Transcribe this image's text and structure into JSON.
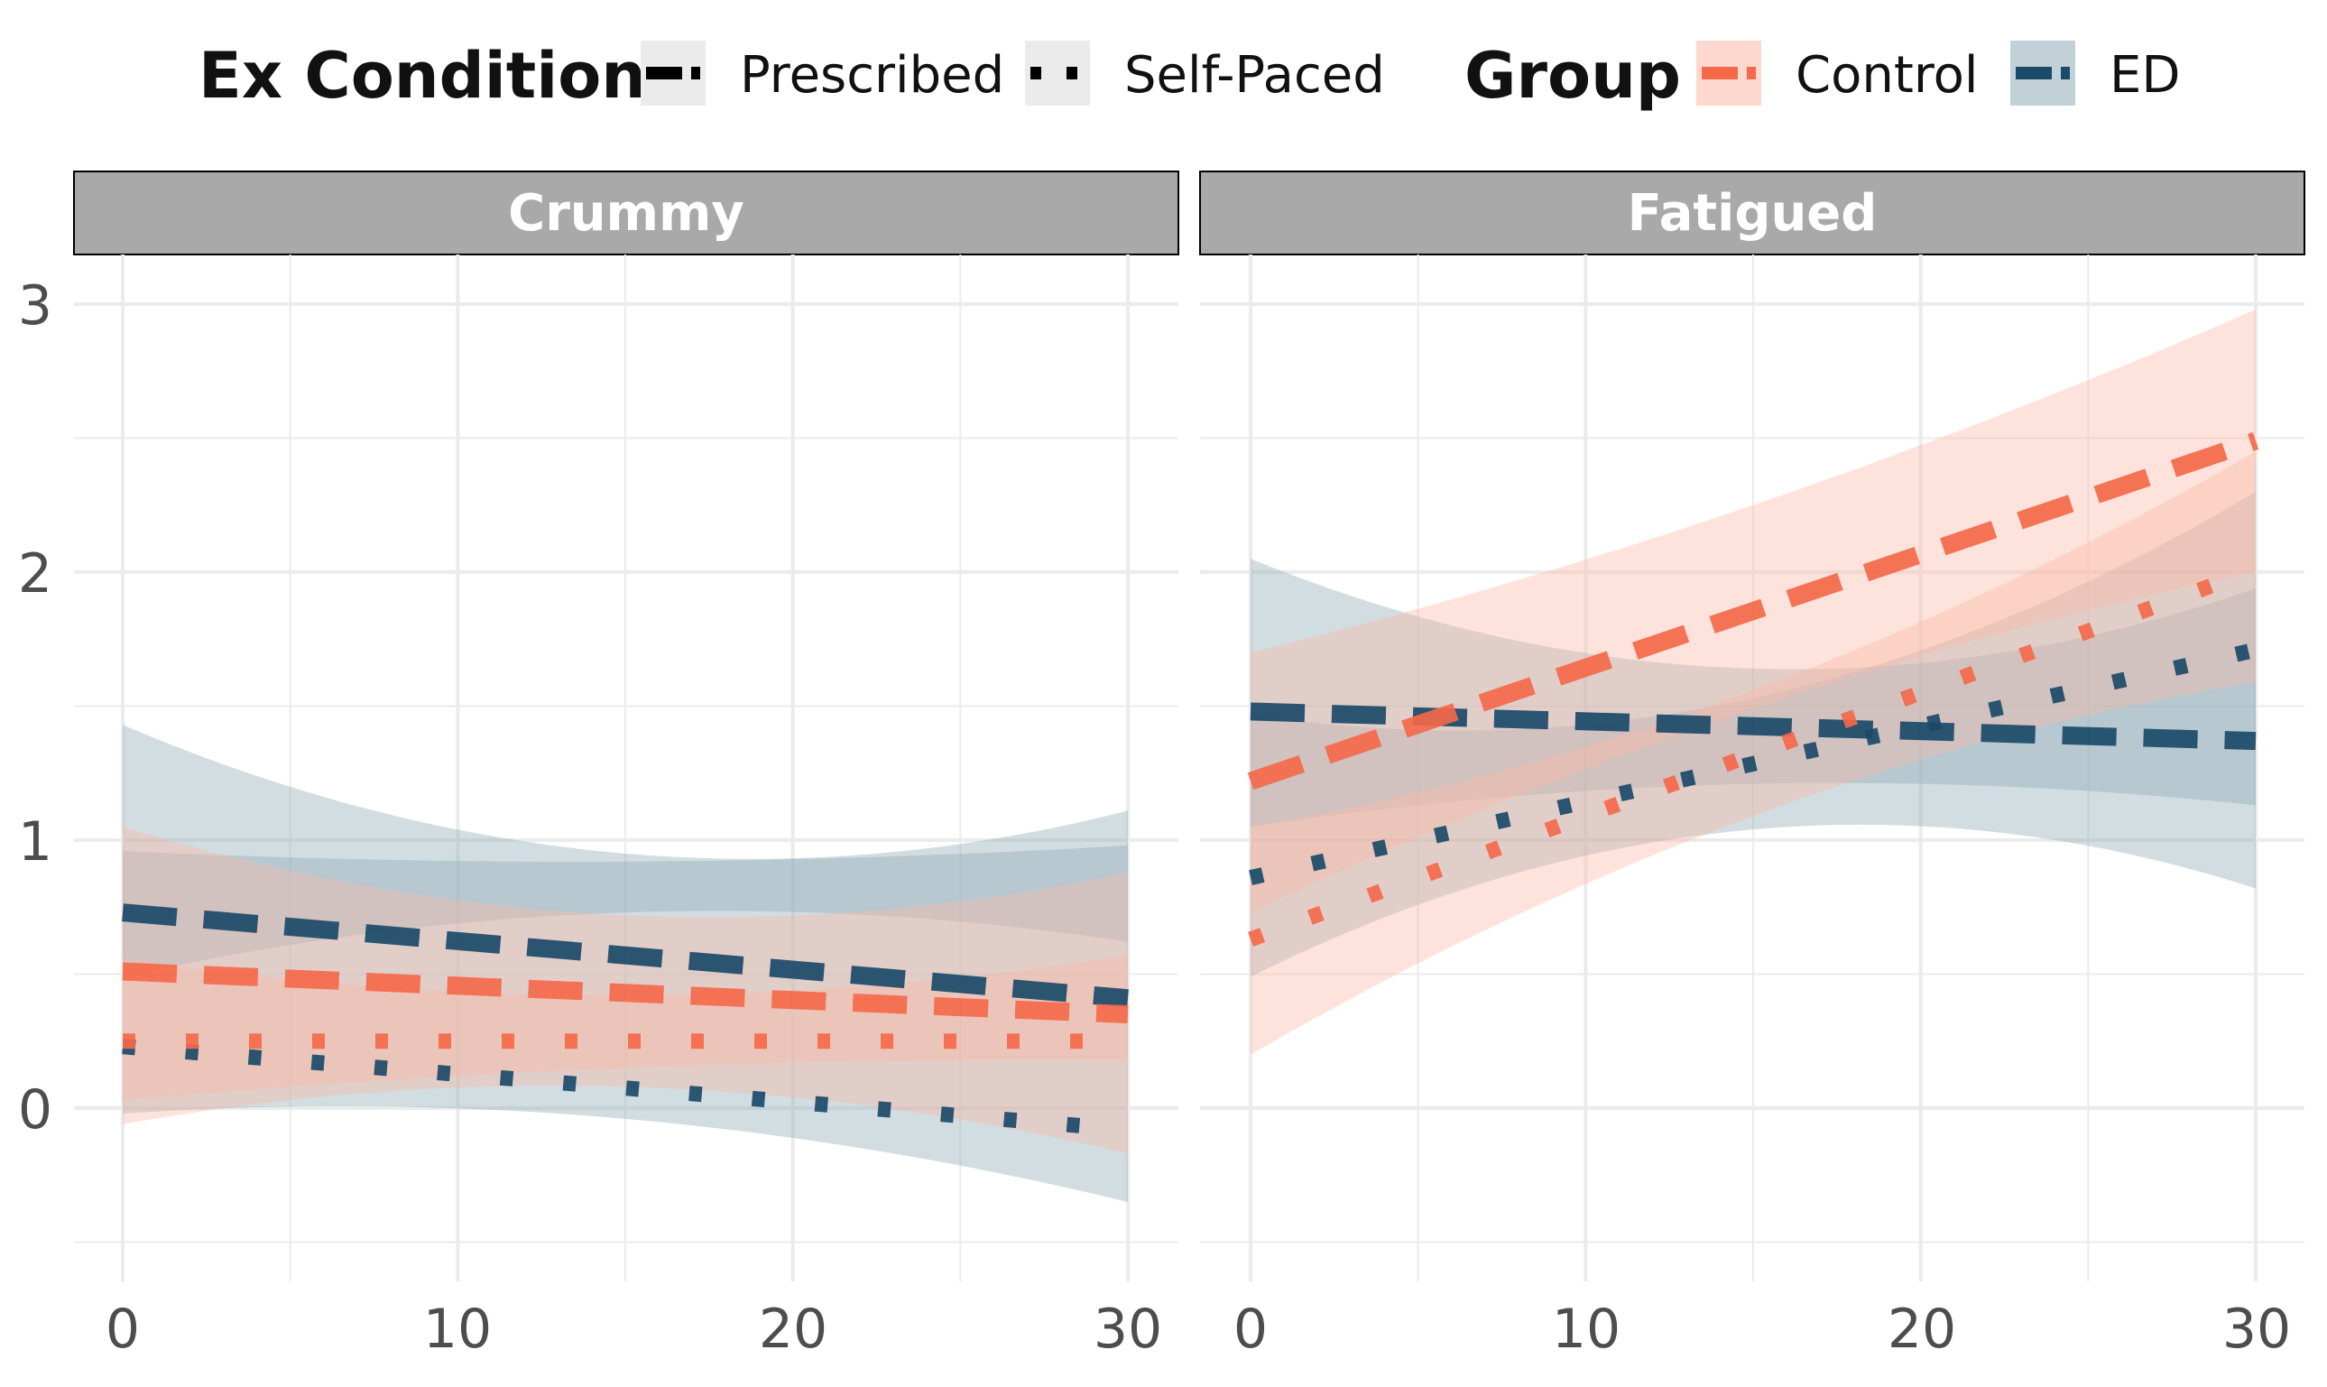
{
  "colors": {
    "control": "#F4694A",
    "control_band": "#FBB8A6",
    "ed": "#1A4A68",
    "ed_band": "#8FA9B6",
    "strip": "#A9A9A9",
    "grid": "#EBEBEB"
  },
  "legend": {
    "ex_condition": {
      "title": "Ex Condition",
      "items": [
        {
          "label": "Prescribed",
          "linetype": "dashed"
        },
        {
          "label": "Self-Paced",
          "linetype": "dotted"
        }
      ]
    },
    "group": {
      "title": "Group",
      "items": [
        {
          "label": "Control",
          "color_key": "control"
        },
        {
          "label": "ED",
          "color_key": "ed"
        }
      ]
    },
    "position": "top"
  },
  "chart_data": {
    "type": "line",
    "facets": [
      "Crummy",
      "Fatigued"
    ],
    "xlim": [
      0,
      30
    ],
    "ylim": [
      -0.5,
      3.2
    ],
    "x_ticks": [
      0,
      10,
      20,
      30
    ],
    "y_ticks": [
      0,
      1,
      2,
      3
    ],
    "grid": true,
    "panels": [
      {
        "facet": "Crummy",
        "series": [
          {
            "name": "ED, Prescribed",
            "group": "ED",
            "condition": "Prescribed",
            "x": [
              0,
              15,
              30
            ],
            "y": [
              0.73,
              0.57,
              0.41
            ],
            "lower": [
              0.49,
              0.73,
              0.62
            ],
            "upper": [
              0.96,
              0.92,
              0.98
            ]
          },
          {
            "name": "ED, Self-Paced",
            "group": "ED",
            "condition": "Self-Paced",
            "x": [
              0,
              15,
              30
            ],
            "y": [
              0.23,
              0.07,
              -0.08
            ],
            "lower": [
              -0.02,
              -0.04,
              -0.35
            ],
            "upper": [
              1.43,
              0.95,
              1.11
            ]
          },
          {
            "name": "Control, Prescribed",
            "group": "Control",
            "condition": "Prescribed",
            "x": [
              0,
              15,
              30
            ],
            "y": [
              0.51,
              0.43,
              0.35
            ],
            "lower": [
              0.03,
              0.15,
              0.18
            ],
            "upper": [
              1.05,
              0.72,
              0.88
            ]
          },
          {
            "name": "Control, Self-Paced",
            "group": "Control",
            "condition": "Self-Paced",
            "x": [
              0,
              15,
              30
            ],
            "y": [
              0.25,
              0.25,
              0.25
            ],
            "lower": [
              -0.06,
              0.08,
              -0.17
            ],
            "upper": [
              0.56,
              0.42,
              0.57
            ]
          }
        ]
      },
      {
        "facet": "Fatigued",
        "series": [
          {
            "name": "ED, Prescribed",
            "group": "ED",
            "condition": "Prescribed",
            "x": [
              0,
              15,
              30
            ],
            "y": [
              1.48,
              1.43,
              1.37
            ],
            "lower": [
              1.05,
              1.21,
              1.13
            ],
            "upper": [
              2.05,
              1.64,
              1.94
            ]
          },
          {
            "name": "ED, Self-Paced",
            "group": "ED",
            "condition": "Self-Paced",
            "x": [
              0,
              15,
              30
            ],
            "y": [
              0.86,
              1.28,
              1.71
            ],
            "lower": [
              0.49,
              1.04,
              0.82
            ],
            "upper": [
              1.47,
              1.53,
              2.3
            ]
          },
          {
            "name": "Control, Prescribed",
            "group": "Control",
            "condition": "Prescribed",
            "x": [
              0,
              15,
              30
            ],
            "y": [
              1.22,
              1.85,
              2.49
            ],
            "lower": [
              0.73,
              1.49,
              2.0
            ],
            "upper": [
              1.7,
              2.25,
              2.98
            ]
          },
          {
            "name": "Control, Self-Paced",
            "group": "Control",
            "condition": "Self-Paced",
            "x": [
              0,
              15,
              30
            ],
            "y": [
              0.63,
              1.32,
              2.01
            ],
            "lower": [
              0.2,
              1.09,
              1.59
            ],
            "upper": [
              1.05,
              1.56,
              2.45
            ]
          }
        ]
      }
    ]
  }
}
